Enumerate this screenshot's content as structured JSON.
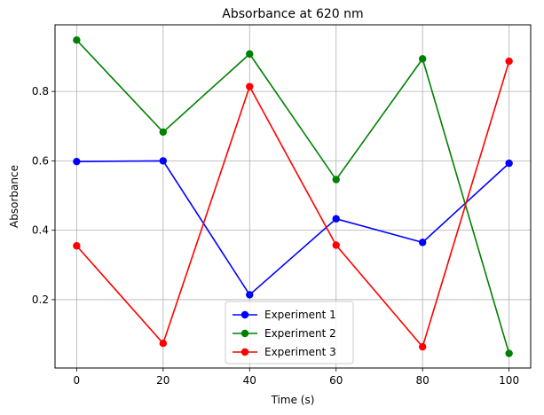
{
  "chart_data": {
    "type": "line",
    "title": "Absorbance at 620 nm",
    "xlabel": "Time (s)",
    "ylabel": "Absorbance",
    "x": [
      0,
      20,
      40,
      60,
      80,
      100
    ],
    "xlim": [
      -5,
      105
    ],
    "ylim": [
      0.003,
      0.992
    ],
    "xticks": [
      0,
      20,
      40,
      60,
      80,
      100
    ],
    "yticks": [
      0.2,
      0.4,
      0.6,
      0.8
    ],
    "ytick_labels": [
      "0.2",
      "0.4",
      "0.6",
      "0.8"
    ],
    "grid": true,
    "legend_position": "lower-center",
    "series": [
      {
        "name": "Experiment 1",
        "color": "#0000ff",
        "marker": "circle",
        "values": [
          0.598,
          0.6,
          0.214,
          0.433,
          0.365,
          0.593
        ]
      },
      {
        "name": "Experiment 2",
        "color": "#008000",
        "marker": "circle",
        "values": [
          0.948,
          0.683,
          0.908,
          0.546,
          0.894,
          0.045
        ]
      },
      {
        "name": "Experiment 3",
        "color": "#ff0000",
        "marker": "circle",
        "values": [
          0.355,
          0.074,
          0.814,
          0.357,
          0.064,
          0.887
        ]
      }
    ]
  }
}
